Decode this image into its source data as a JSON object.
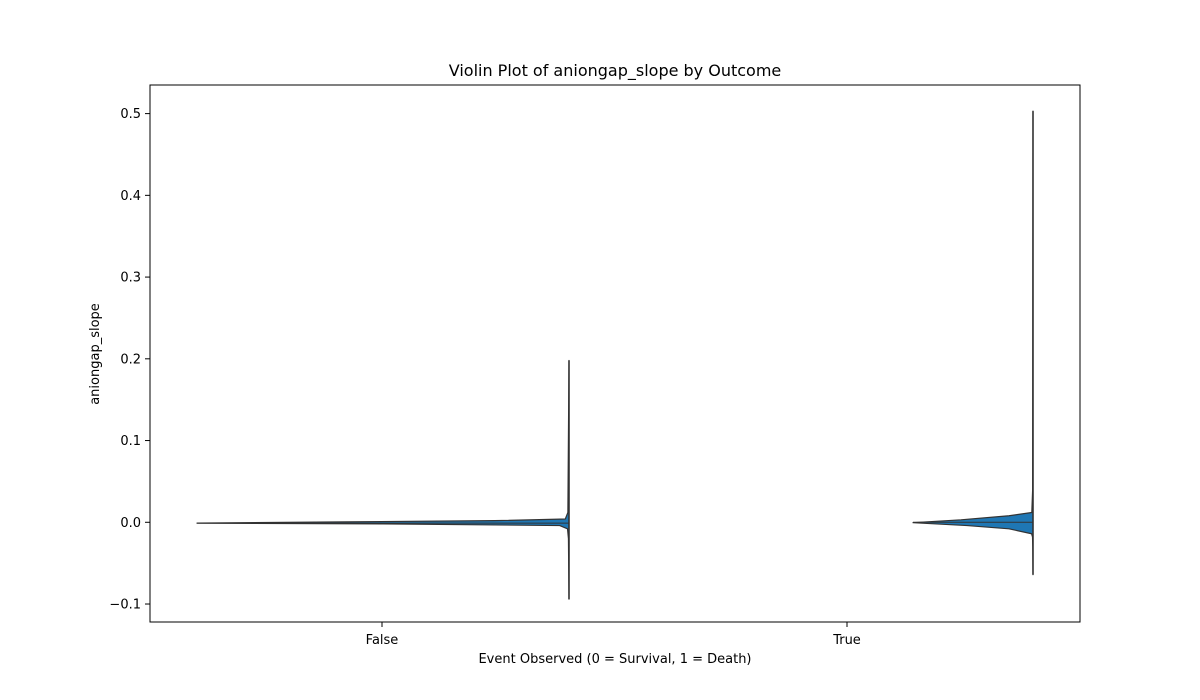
{
  "chart_data": {
    "type": "violin",
    "title": "Violin Plot of aniongap_slope by Outcome",
    "xlabel": "Event Observed (0 = Survival, 1 = Death)",
    "ylabel": "aniongap_slope",
    "categories": [
      "False",
      "True"
    ],
    "ylim": [
      -0.122,
      0.535
    ],
    "yticks": [
      -0.1,
      0.0,
      0.1,
      0.2,
      0.3,
      0.4,
      0.5
    ],
    "ytick_labels": [
      "−0.1",
      "0.0",
      "0.1",
      "0.2",
      "0.3",
      "0.4",
      "0.5"
    ],
    "grid": false,
    "legend": "none",
    "fill_color": "#1f77b4",
    "edge_color": "#333333",
    "violins": [
      {
        "category": "False",
        "min": -0.094,
        "max": 0.198,
        "median": -0.001,
        "split_side": "left",
        "profile": [
          [
            -0.094,
            0.0
          ],
          [
            -0.02,
            0.0015
          ],
          [
            -0.008,
            0.004
          ],
          [
            -0.004,
            0.025
          ],
          [
            -0.002,
            0.5
          ],
          [
            -0.001,
            1.0
          ],
          [
            0.0005,
            0.6
          ],
          [
            0.002,
            0.2
          ],
          [
            0.004,
            0.01
          ],
          [
            0.012,
            0.003
          ],
          [
            0.198,
            0.0
          ]
        ]
      },
      {
        "category": "True",
        "min": -0.064,
        "max": 0.503,
        "median": 0.0,
        "split_side": "left",
        "profile": [
          [
            -0.064,
            0.0
          ],
          [
            -0.03,
            0.002
          ],
          [
            -0.018,
            0.004
          ],
          [
            -0.014,
            0.012
          ],
          [
            -0.008,
            0.2
          ],
          [
            -0.004,
            0.55
          ],
          [
            -0.0005,
            1.0
          ],
          [
            0.003,
            0.6
          ],
          [
            0.008,
            0.2
          ],
          [
            0.012,
            0.01
          ],
          [
            0.04,
            0.003
          ],
          [
            0.503,
            0.0
          ]
        ]
      }
    ]
  }
}
